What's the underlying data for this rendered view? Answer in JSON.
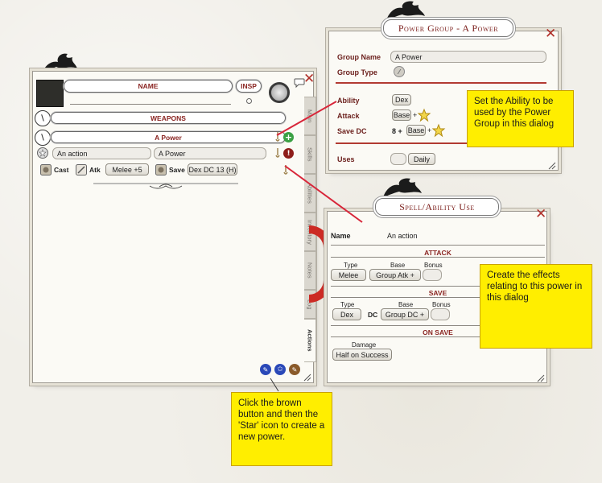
{
  "char_sheet": {
    "name_label": "NAME",
    "insp_label": "INSP",
    "weapons_label": "WEAPONS",
    "power_group_name": "A Power",
    "action_name": "An action",
    "action_group": "A Power",
    "cast_label": "Cast",
    "atk_label": "Atk",
    "atk_value": "Melee +5",
    "save_label": "Save",
    "save_value": "Dex DC 13 (H)",
    "tabs": [
      "Main",
      "Skills",
      "Abilities",
      "Inventory",
      "Notes",
      "Log",
      "Actions"
    ],
    "active_tab": "Actions"
  },
  "power_group": {
    "title": "Power Group - A Power",
    "group_name_label": "Group Name",
    "group_name_value": "A Power",
    "group_type_label": "Group Type",
    "ability_label": "Ability",
    "ability_value": "Dex",
    "attack_label": "Attack",
    "attack_base": "Base",
    "attack_plus": "+",
    "save_dc_label": "Save DC",
    "save_dc_prefix": "8 +",
    "save_dc_base": "Base",
    "save_dc_plus": "+",
    "uses_label": "Uses",
    "uses_period": "Daily"
  },
  "spell_use": {
    "title": "Spell/Ability Use",
    "name_label": "Name",
    "name_value": "An action",
    "attack_section": "ATTACK",
    "type_label": "Type",
    "base_label": "Base",
    "bonus_label": "Bonus",
    "attack_type": "Melee",
    "attack_base": "Group Atk +",
    "save_section": "SAVE",
    "save_type_label": "Type",
    "save_base_label": "Base",
    "save_bonus_label": "Bonus",
    "save_type": "Dex",
    "dc_label": "DC",
    "save_base": "Group DC +",
    "on_save_section": "ON SAVE",
    "damage_label": "Damage",
    "damage_value": "Half on Success"
  },
  "notes": {
    "ability_note": "Set the Ability to be used by the Power Group in this dialog",
    "effects_note": "Create the effects relating to this power in this dialog",
    "create_note": "Click the brown button and then the 'Star' icon to create a new power."
  },
  "colors": {
    "accent_red": "#b0302a",
    "note_yellow": "#ffee00",
    "add_green": "#3aa043",
    "edit_blue": "#2a48b8",
    "brown": "#8a5a2a"
  }
}
